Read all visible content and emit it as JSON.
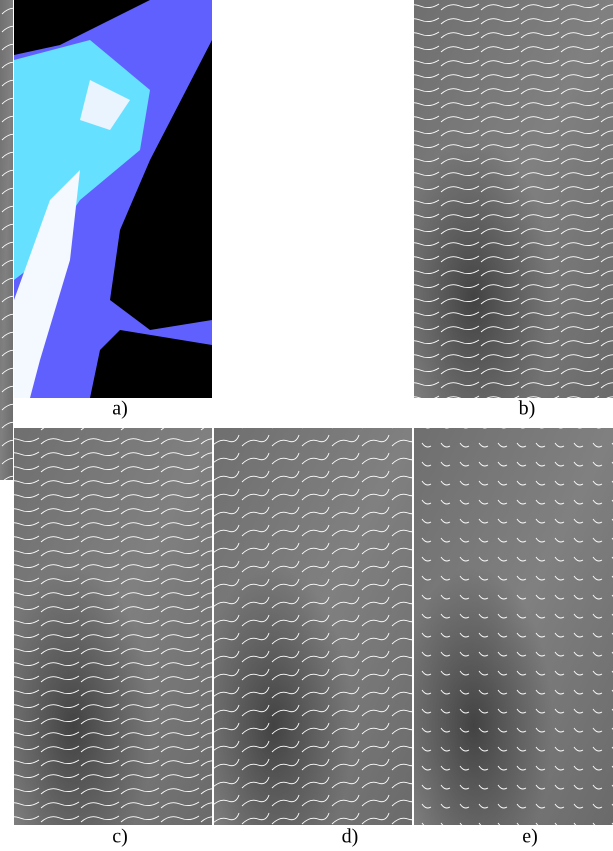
{
  "figure": {
    "panels": [
      {
        "caption": "a)"
      },
      {
        "caption": "b)"
      },
      {
        "caption": "c)"
      },
      {
        "caption": "d)"
      },
      {
        "caption": "e)"
      }
    ]
  }
}
